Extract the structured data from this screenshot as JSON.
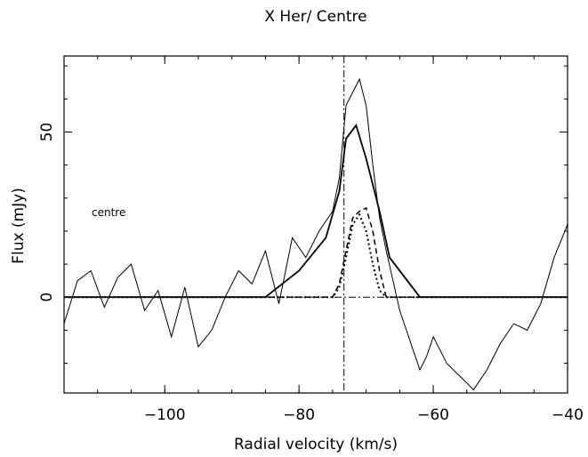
{
  "chart_data": {
    "type": "line",
    "title": "X Her/ Centre",
    "xlabel": "Radial velocity (km/s)",
    "ylabel": "Flux (mJy)",
    "annotation": "centre",
    "xlim": [
      -115,
      -40
    ],
    "ylim": [
      -29,
      73
    ],
    "x_ticks": [
      -100,
      -80,
      -60,
      -40
    ],
    "x_tick_labels": [
      "−100",
      "−80",
      "−60",
      "−40"
    ],
    "y_ticks": [
      0,
      50
    ],
    "y_tick_labels": [
      "0",
      "50"
    ],
    "vertical_reference_line": -73.3,
    "horizontal_reference_line": 0,
    "series": [
      {
        "style": "solid-thick",
        "x": [
          -115,
          -85,
          -80,
          -76,
          -74,
          -73,
          -71.5,
          -70,
          -68,
          -66.5,
          -62,
          -40
        ],
        "y": [
          0,
          0,
          8,
          18,
          32,
          48,
          52,
          42,
          26,
          12,
          0,
          0
        ]
      },
      {
        "style": "dashed",
        "x": [
          -115,
          -75,
          -74,
          -73,
          -72,
          -71,
          -70,
          -69,
          -68,
          -67,
          -40
        ],
        "y": [
          0,
          0,
          4,
          14,
          24,
          26,
          27,
          20,
          8,
          0,
          0
        ]
      },
      {
        "style": "dotted",
        "x": [
          -115,
          -75,
          -74,
          -73,
          -72,
          -71,
          -70,
          -69,
          -68,
          -67,
          -40
        ],
        "y": [
          0,
          0,
          3,
          12,
          22,
          25,
          20,
          10,
          2,
          0,
          0
        ]
      },
      {
        "style": "noisy-spectrum",
        "x": [
          -115,
          -113,
          -111,
          -109,
          -107,
          -105,
          -103,
          -101,
          -99,
          -97,
          -95,
          -93,
          -91,
          -89,
          -87,
          -85,
          -83,
          -81,
          -79,
          -77,
          -75,
          -74,
          -73,
          -72,
          -71,
          -70,
          -69,
          -68,
          -67,
          -66,
          -65,
          -64,
          -63,
          -62,
          -61,
          -60,
          -58,
          -56,
          -54,
          -52,
          -50,
          -48,
          -46,
          -44,
          -42,
          -40
        ],
        "y": [
          -8,
          5,
          8,
          -3,
          6,
          10,
          -4,
          2,
          -12,
          3,
          -15,
          -10,
          0,
          8,
          4,
          14,
          -2,
          18,
          12,
          20,
          26,
          36,
          58,
          62,
          66,
          58,
          40,
          24,
          14,
          5,
          -4,
          -10,
          -16,
          -22,
          -18,
          -12,
          -20,
          -24,
          -28,
          -22,
          -14,
          -8,
          -10,
          -2,
          12,
          22
        ]
      }
    ]
  }
}
